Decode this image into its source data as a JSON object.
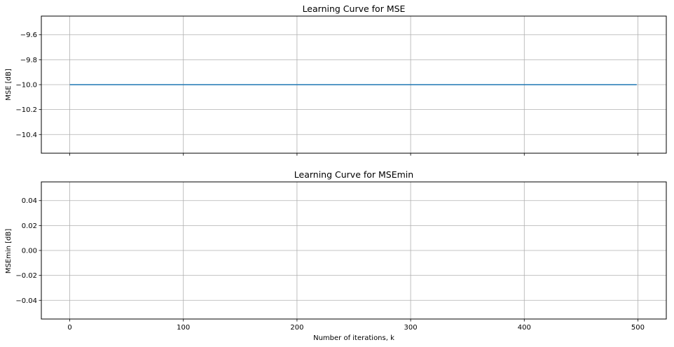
{
  "chart_data": [
    {
      "type": "line",
      "title": "Learning Curve for MSE",
      "xlabel": "",
      "ylabel": "MSE [dB]",
      "xlim": [
        -25,
        525
      ],
      "ylim": [
        -10.55,
        -9.45
      ],
      "xticks": [
        0,
        100,
        200,
        300,
        400,
        500
      ],
      "xtick_labels": [
        "",
        "",
        "",
        "",
        "",
        ""
      ],
      "yticks": [
        -9.6,
        -9.8,
        -10.0,
        -10.2,
        -10.4
      ],
      "ytick_labels": [
        "−9.6",
        "−9.8",
        "−10.0",
        "−10.2",
        "−10.4"
      ],
      "grid": true,
      "series": [
        {
          "color": "#1f77b4",
          "x": [
            0,
            499
          ],
          "y": [
            -10.0,
            -10.0
          ]
        }
      ]
    },
    {
      "type": "line",
      "title": "Learning Curve for MSEmin",
      "xlabel": "Number of iterations, k",
      "ylabel": "MSEmin [dB]",
      "xlim": [
        -25,
        525
      ],
      "ylim": [
        -0.055,
        0.055
      ],
      "xticks": [
        0,
        100,
        200,
        300,
        400,
        500
      ],
      "xtick_labels": [
        "0",
        "100",
        "200",
        "300",
        "400",
        "500"
      ],
      "yticks": [
        0.04,
        0.02,
        0.0,
        -0.02,
        -0.04
      ],
      "ytick_labels": [
        "0.04",
        "0.02",
        "0.00",
        "−0.02",
        "−0.04"
      ],
      "grid": true,
      "series": []
    }
  ]
}
